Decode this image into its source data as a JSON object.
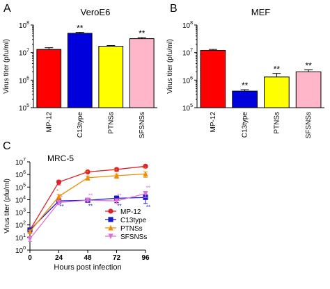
{
  "chart_data": [
    {
      "panel": "A",
      "type": "bar",
      "title": "VeroE6",
      "ylabel": "Virus titer (pfu/ml)",
      "yscale": "log",
      "ylim": [
        100000,
        100000000
      ],
      "yticks": [
        {
          "v": 100000,
          "b": "10",
          "e": "5"
        },
        {
          "v": 1000000,
          "b": "10",
          "e": "6"
        },
        {
          "v": 10000000,
          "b": "10",
          "e": "7"
        },
        {
          "v": 100000000,
          "b": "10",
          "e": "8"
        }
      ],
      "categories": [
        "MP-12",
        "C13type",
        "PTNSs",
        "SFSNSs"
      ],
      "values": [
        13000000,
        50000000,
        17000000,
        32000000
      ],
      "errors": [
        2000000,
        4000000,
        1000000,
        3000000
      ],
      "colors": [
        "#ff0000",
        "#0000dd",
        "#ffff00",
        "#ffb6c8"
      ],
      "annotations": [
        "",
        "**",
        "",
        "**"
      ]
    },
    {
      "panel": "B",
      "type": "bar",
      "title": "MEF",
      "ylabel": "Virus titer (pfu/ml)",
      "yscale": "log",
      "ylim": [
        100000,
        100000000
      ],
      "yticks": [
        {
          "v": 100000,
          "b": "10",
          "e": "5"
        },
        {
          "v": 1000000,
          "b": "10",
          "e": "6"
        },
        {
          "v": 10000000,
          "b": "10",
          "e": "7"
        },
        {
          "v": 100000000,
          "b": "10",
          "e": "8"
        }
      ],
      "categories": [
        "MP-12",
        "C13type",
        "PTNSs",
        "SFSNSs"
      ],
      "values": [
        12000000,
        400000,
        1300000,
        2000000
      ],
      "errors": [
        1000000,
        50000,
        450000,
        350000
      ],
      "colors": [
        "#ff0000",
        "#0000dd",
        "#ffff00",
        "#ffb6c8"
      ],
      "annotations": [
        "",
        "**",
        "**",
        "**"
      ]
    },
    {
      "panel": "C",
      "type": "line",
      "title": "MRC-5",
      "ylabel": "Virus titer (pfu/ml)",
      "xlabel": "Hours post infection",
      "yscale": "log",
      "ylim": [
        1,
        10000000
      ],
      "yticks": [
        {
          "v": 1,
          "b": "10",
          "e": "0"
        },
        {
          "v": 10,
          "b": "10",
          "e": "1"
        },
        {
          "v": 100,
          "b": "10",
          "e": "2"
        },
        {
          "v": 1000,
          "b": "10",
          "e": "3"
        },
        {
          "v": 10000,
          "b": "10",
          "e": "4"
        },
        {
          "v": 100000,
          "b": "10",
          "e": "5"
        },
        {
          "v": 1000000,
          "b": "10",
          "e": "6"
        },
        {
          "v": 10000000,
          "b": "10",
          "e": "7"
        }
      ],
      "xlim": [
        0,
        96
      ],
      "xticks": [
        0,
        24,
        48,
        72,
        96
      ],
      "x": [
        0,
        24,
        48,
        72,
        96
      ],
      "legend_position": "bottom-right",
      "series": [
        {
          "name": "MP-12",
          "color": "#e0202a",
          "marker": "circle",
          "values": [
            40,
            250000,
            1600000,
            2500000,
            4500000
          ],
          "errors": [
            10,
            100000,
            300000,
            700000,
            1200000
          ],
          "sig": [
            null,
            null,
            null,
            null,
            null
          ]
        },
        {
          "name": "C13type",
          "color": "#1a1ac8",
          "marker": "square",
          "values": [
            40,
            8000,
            9000,
            13000,
            15000
          ],
          "errors": [
            10,
            2500,
            3000,
            7000,
            10000
          ],
          "sig": [
            null,
            "**",
            "**",
            "**",
            "**"
          ]
        },
        {
          "name": "PTNSs",
          "color": "#f08c00",
          "marker": "triangle-up",
          "values": [
            30,
            18000,
            550000,
            800000,
            1100000
          ],
          "errors": [
            8,
            8000,
            200000,
            300000,
            500000
          ],
          "sig": [
            null,
            "*",
            "**",
            "**",
            "**"
          ]
        },
        {
          "name": "SFSNSs",
          "color": "#e070d8",
          "marker": "triangle-down",
          "values": [
            8,
            6000,
            9000,
            8000,
            30000
          ],
          "errors": [
            3,
            2000,
            2500,
            3000,
            15000
          ],
          "sig": [
            null,
            "*",
            "**",
            "**",
            "**"
          ]
        }
      ]
    }
  ],
  "panel_letters": [
    "A",
    "B",
    "C"
  ]
}
